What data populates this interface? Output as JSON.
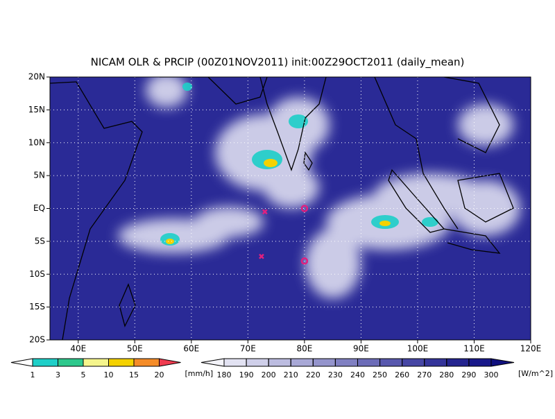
{
  "chart_data": {
    "type": "map",
    "title": "NICAM OLR & PRCIP (00Z01NOV2011) init:00Z29OCT2011 (daily_mean)",
    "xlim": [
      35,
      120
    ],
    "ylim": [
      -20,
      20
    ],
    "xticks": [
      {
        "value": 40,
        "label": "40E"
      },
      {
        "value": 50,
        "label": "50E"
      },
      {
        "value": 60,
        "label": "60E"
      },
      {
        "value": 70,
        "label": "70E"
      },
      {
        "value": 80,
        "label": "80E"
      },
      {
        "value": 90,
        "label": "90E"
      },
      {
        "value": 100,
        "label": "100E"
      },
      {
        "value": 110,
        "label": "110E"
      },
      {
        "value": 120,
        "label": "120E"
      }
    ],
    "yticks": [
      {
        "value": -20,
        "label": "20S"
      },
      {
        "value": -15,
        "label": "15S"
      },
      {
        "value": -10,
        "label": "10S"
      },
      {
        "value": -5,
        "label": "5S"
      },
      {
        "value": 0,
        "label": "EQ"
      },
      {
        "value": 5,
        "label": "5N"
      },
      {
        "value": 10,
        "label": "10N"
      },
      {
        "value": 15,
        "label": "15N"
      },
      {
        "value": 20,
        "label": "20N"
      }
    ],
    "grid": true,
    "markers": [
      {
        "symbol": "x",
        "x": 73,
        "y": -0.5,
        "color": "#e0207f"
      },
      {
        "symbol": "x",
        "x": 72.4,
        "y": -7.3,
        "color": "#e0207f"
      },
      {
        "symbol": "o",
        "x": 80,
        "y": 0,
        "color": "#e0207f"
      },
      {
        "symbol": "o",
        "x": 80,
        "y": -8,
        "color": "#e0207f"
      }
    ],
    "colorbars": [
      {
        "levels": [
          1,
          3,
          5,
          10,
          15,
          20
        ],
        "unit": "[mm/h]",
        "colors": [
          "#ffffff",
          "#1ecfc8",
          "#2dc88c",
          "#f5f58c",
          "#f5d200",
          "#f58c28",
          "#f03c50"
        ]
      },
      {
        "levels": [
          180,
          190,
          200,
          210,
          220,
          230,
          240,
          250,
          260,
          270,
          280,
          290,
          300
        ],
        "unit": "[W/m^2]",
        "colors": [
          "#f4f4fa",
          "#e2e2f2",
          "#cfcfe9",
          "#bcbce0",
          "#a8a8d6",
          "#9494cc",
          "#8080c2",
          "#6c6cb8",
          "#5858ae",
          "#4646a4",
          "#34349a",
          "#24248f",
          "#18188a",
          "#10107e"
        ]
      }
    ]
  }
}
